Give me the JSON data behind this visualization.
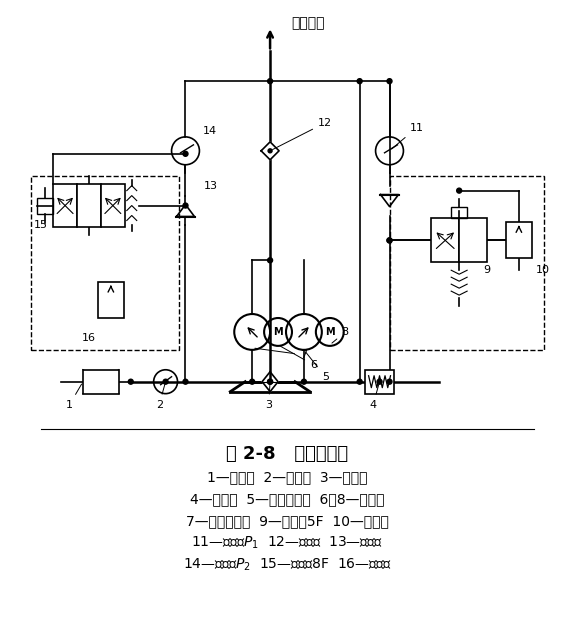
{
  "title": "图 2-8   液压原理图",
  "caption_lines": [
    "1—冷却器  2—油温仪  3—过滤器",
    "4—加热器  5—高压液压泵  6、8—电动机",
    "7—低压液压泵  9—电磁阀5F  10—溢流阀",
    "11—压力表$P_1$  12—单向阀  13—单向阀",
    "14—压力表$P_2$  15—电磁阀8F  16—溢流阀"
  ],
  "top_label": "工作系统",
  "bg_color": "#ffffff",
  "line_color": "#000000",
  "fig_title_fontsize": 13,
  "caption_fontsize": 10,
  "label_fontsize": 8
}
